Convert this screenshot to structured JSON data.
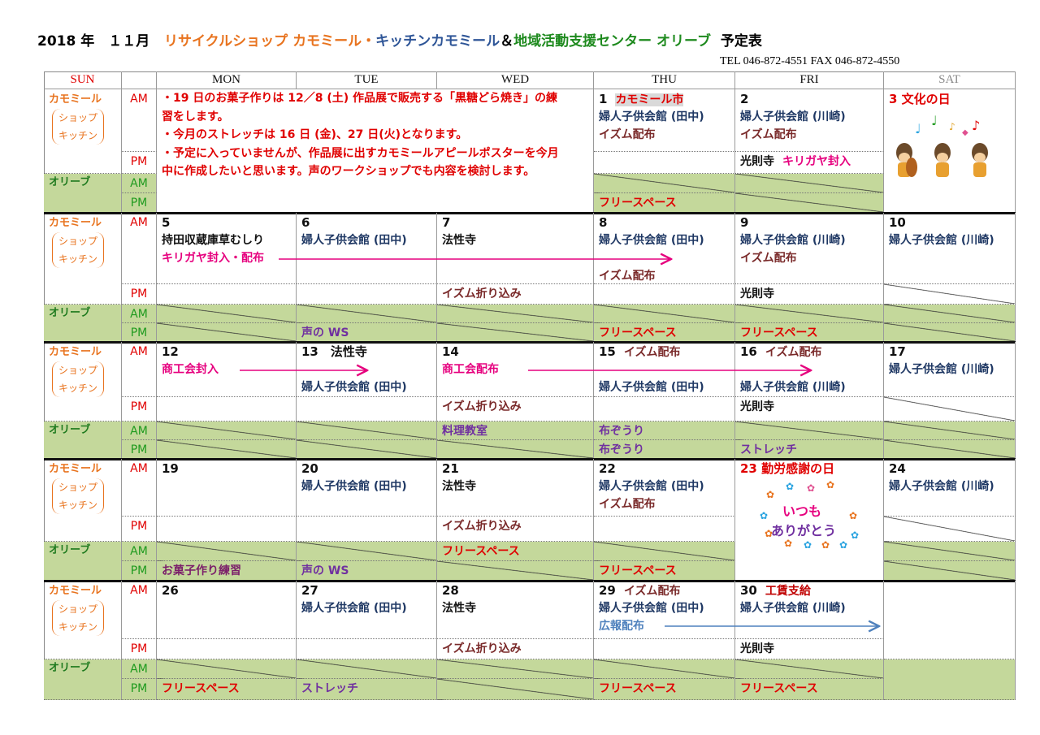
{
  "title": {
    "year_month": "2018 年　１１月",
    "part1": "リサイクルショップ カモミール・",
    "part2": "キッチンカモミール",
    "part3": "＆",
    "part4": "地域活動支援センター オリーブ",
    "part5": "予定表"
  },
  "contact": "TEL  046-872-4551    FAX  046-872-4550",
  "colors": {
    "orange": "#e8731e",
    "blue": "#2e5597",
    "green": "#1e8a1e",
    "red": "#e00000",
    "navy": "#1f3864",
    "brown": "#7a2a2a",
    "pink": "#e6007e",
    "purple": "#7030a0",
    "sky": "#4f81bd",
    "olive_bg": "#c4d89b"
  },
  "headers": [
    "SUN",
    "",
    "MON",
    "TUE",
    "WED",
    "THU",
    "FRI",
    "SAT"
  ],
  "labels": {
    "kamo": "カモミール",
    "shop": "ショップ",
    "kitchen": "キッチン",
    "olive": "オリーブ",
    "am": "AM",
    "pm": "PM"
  },
  "note_lines": [
    "・19 日のお菓子作りは  12／8 (土) 作品展で販売する「黒糖どら焼き」の練",
    "習をします。",
    "・今月のストレッチは 16 日 (金)、27 日(火)となります。",
    "・予定に入っていませんが、作品展に出すカモミールアピールポスターを今月",
    "中に作成したいと思います。声のワークショップでも内容を検討します。"
  ],
  "images": {
    "culture_day": "musicians-illustration",
    "thanks_text_1": "いつも",
    "thanks_text_2": "ありがとう"
  },
  "weeks": [
    {
      "days": [
        null,
        null,
        null,
        {
          "am": [
            [
              {
                "t": "1",
                "c": "#111"
              },
              {
                "t": "カモミール市",
                "c": "#e00000",
                "hl": true
              }
            ],
            [
              {
                "t": "婦人子供会館 (田中)",
                "c": "#1f3864"
              }
            ],
            [
              {
                "t": "イズム配布",
                "c": "#7a2a2a"
              }
            ]
          ],
          "pm": [],
          "oam": [],
          "opm": [
            {
              "t": "フリースペース",
              "c": "#e00000"
            }
          ]
        },
        {
          "am": [
            [
              {
                "t": "2",
                "c": "#111"
              }
            ],
            [
              {
                "t": "婦人子供会館 (川崎)",
                "c": "#1f3864"
              }
            ],
            [
              {
                "t": "イズム配布",
                "c": "#7a2a2a"
              }
            ]
          ],
          "pm": [
            {
              "t": "光則寺",
              "c": "#111"
            },
            {
              "t": "キリガヤ封入",
              "c": "#e6007e"
            }
          ],
          "oam": [],
          "opm": []
        },
        {
          "am": [
            [
              {
                "t": "3  文化の日",
                "c": "#e00000"
              }
            ]
          ]
        }
      ]
    },
    {
      "days": [
        {
          "am": [
            [
              {
                "t": "5",
                "c": "#111"
              }
            ],
            [
              {
                "t": "持田収蔵庫草むしり",
                "c": "#111"
              }
            ],
            [
              {
                "t": "キリガヤ封入・配布",
                "c": "#e6007e"
              }
            ]
          ],
          "pm": [],
          "oam": [],
          "opm": []
        },
        {
          "am": [
            [
              {
                "t": "6",
                "c": "#111"
              }
            ],
            [
              {
                "t": "婦人子供会館 (田中)",
                "c": "#1f3864"
              }
            ]
          ],
          "pm": [],
          "oam": [],
          "opm": [
            {
              "t": "声の WS",
              "c": "#7030a0"
            }
          ]
        },
        {
          "am": [
            [
              {
                "t": "7",
                "c": "#111"
              }
            ],
            [
              {
                "t": "法性寺",
                "c": "#111"
              }
            ]
          ],
          "pm": [
            {
              "t": "イズム折り込み",
              "c": "#7a2a2a"
            }
          ],
          "oam": [],
          "opm": []
        },
        {
          "am": [
            [
              {
                "t": "8",
                "c": "#111"
              }
            ],
            [
              {
                "t": "婦人子供会館 (田中)",
                "c": "#1f3864"
              }
            ],
            [],
            [
              {
                "t": "イズム配布",
                "c": "#7a2a2a"
              }
            ]
          ],
          "pm": [],
          "oam": [],
          "opm": [
            {
              "t": "フリースペース",
              "c": "#e00000"
            }
          ]
        },
        {
          "am": [
            [
              {
                "t": "9",
                "c": "#111"
              }
            ],
            [
              {
                "t": "婦人子供会館 (川崎)",
                "c": "#1f3864"
              }
            ],
            [
              {
                "t": "イズム配布",
                "c": "#7a2a2a"
              }
            ]
          ],
          "pm": [
            {
              "t": "光則寺",
              "c": "#111"
            }
          ],
          "oam": [],
          "opm": [
            {
              "t": "フリースペース",
              "c": "#e00000"
            }
          ]
        },
        {
          "am": [
            [
              {
                "t": "10",
                "c": "#111"
              }
            ],
            [
              {
                "t": "婦人子供会館 (川崎)",
                "c": "#1f3864"
              }
            ]
          ],
          "pm": [],
          "oam": [],
          "opm": []
        }
      ]
    },
    {
      "days": [
        {
          "am": [
            [
              {
                "t": "12",
                "c": "#111"
              }
            ],
            [
              {
                "t": "商工会封入",
                "c": "#e6007e"
              }
            ]
          ],
          "pm": [],
          "oam": [],
          "opm": []
        },
        {
          "am": [
            [
              {
                "t": "13　法性寺",
                "c": "#111"
              }
            ],
            [],
            [
              {
                "t": "婦人子供会館 (田中)",
                "c": "#1f3864"
              }
            ]
          ],
          "pm": [],
          "oam": [],
          "opm": []
        },
        {
          "am": [
            [
              {
                "t": "14",
                "c": "#111"
              }
            ],
            [
              {
                "t": "商工会配布",
                "c": "#e6007e"
              }
            ]
          ],
          "pm": [
            {
              "t": "イズム折り込み",
              "c": "#7a2a2a"
            }
          ],
          "oam": [
            {
              "t": "料理教室",
              "c": "#7030a0"
            }
          ],
          "opm": []
        },
        {
          "am": [
            [
              {
                "t": "15",
                "c": "#111"
              },
              {
                "t": "イズム配布",
                "c": "#7a2a2a"
              }
            ],
            [],
            [
              {
                "t": "婦人子供会館 (田中)",
                "c": "#1f3864"
              }
            ]
          ],
          "pm": [],
          "oam": [
            {
              "t": "布ぞうり",
              "c": "#7030a0"
            }
          ],
          "opm": [
            {
              "t": "布ぞうり",
              "c": "#7030a0"
            }
          ]
        },
        {
          "am": [
            [
              {
                "t": "16",
                "c": "#111"
              },
              {
                "t": "イズム配布",
                "c": "#7a2a2a"
              }
            ],
            [],
            [
              {
                "t": "婦人子供会館 (川崎)",
                "c": "#1f3864"
              }
            ]
          ],
          "pm": [
            {
              "t": "光則寺",
              "c": "#111"
            }
          ],
          "oam": [],
          "opm": [
            {
              "t": "ストレッチ",
              "c": "#7030a0"
            }
          ]
        },
        {
          "am": [
            [
              {
                "t": "17",
                "c": "#111"
              }
            ],
            [
              {
                "t": "婦人子供会館 (川崎)",
                "c": "#1f3864"
              }
            ]
          ],
          "pm": [],
          "oam": [],
          "opm": []
        }
      ]
    },
    {
      "days": [
        {
          "am": [
            [
              {
                "t": "19",
                "c": "#111"
              }
            ]
          ],
          "pm": [],
          "oam": [],
          "opm": [
            {
              "t": "お菓子作り練習",
              "c": "#7b1f6a"
            }
          ]
        },
        {
          "am": [
            [
              {
                "t": "20",
                "c": "#111"
              }
            ],
            [
              {
                "t": "婦人子供会館 (田中)",
                "c": "#1f3864"
              }
            ]
          ],
          "pm": [],
          "oam": [],
          "opm": [
            {
              "t": "声の WS",
              "c": "#7030a0"
            }
          ]
        },
        {
          "am": [
            [
              {
                "t": "21",
                "c": "#111"
              }
            ],
            [
              {
                "t": "法性寺",
                "c": "#111"
              }
            ]
          ],
          "pm": [
            {
              "t": "イズム折り込み",
              "c": "#7a2a2a"
            }
          ],
          "oam": [
            {
              "t": "フリースペース",
              "c": "#e00000"
            }
          ],
          "opm": []
        },
        {
          "am": [
            [
              {
                "t": "22",
                "c": "#111"
              }
            ],
            [
              {
                "t": "婦人子供会館 (田中)",
                "c": "#1f3864"
              }
            ],
            [
              {
                "t": "イズム配布",
                "c": "#7a2a2a"
              }
            ]
          ],
          "pm": [],
          "oam": [],
          "opm": [
            {
              "t": "フリースペース",
              "c": "#e00000"
            }
          ]
        },
        {
          "am": [
            [
              {
                "t": "23  勤労感謝の日",
                "c": "#e00000"
              }
            ]
          ]
        },
        {
          "am": [
            [
              {
                "t": "24",
                "c": "#111"
              }
            ],
            [
              {
                "t": "婦人子供会館 (川崎)",
                "c": "#1f3864"
              }
            ]
          ],
          "pm": [],
          "oam": [],
          "opm": []
        }
      ]
    },
    {
      "days": [
        {
          "am": [
            [
              {
                "t": "26",
                "c": "#111"
              }
            ]
          ],
          "pm": [],
          "oam": [],
          "opm": [
            {
              "t": "フリースペース",
              "c": "#e00000"
            }
          ]
        },
        {
          "am": [
            [
              {
                "t": "27",
                "c": "#111"
              }
            ],
            [
              {
                "t": "婦人子供会館 (田中)",
                "c": "#1f3864"
              }
            ]
          ],
          "pm": [],
          "oam": [],
          "opm": [
            {
              "t": "ストレッチ",
              "c": "#7030a0"
            }
          ]
        },
        {
          "am": [
            [
              {
                "t": "28",
                "c": "#111"
              }
            ],
            [
              {
                "t": "法性寺",
                "c": "#111"
              }
            ]
          ],
          "pm": [
            {
              "t": "イズム折り込み",
              "c": "#7a2a2a"
            }
          ],
          "oam": [],
          "opm": []
        },
        {
          "am": [
            [
              {
                "t": "29",
                "c": "#111"
              },
              {
                "t": "イズム配布",
                "c": "#7a2a2a"
              }
            ],
            [
              {
                "t": "婦人子供会館 (田中)",
                "c": "#1f3864"
              }
            ],
            [
              {
                "t": "広報配布",
                "c": "#4f81bd"
              }
            ]
          ],
          "pm": [],
          "oam": [],
          "opm": [
            {
              "t": "フリースペース",
              "c": "#e00000"
            }
          ]
        },
        {
          "am": [
            [
              {
                "t": "30",
                "c": "#111"
              },
              {
                "t": "工賃支給",
                "c": "#c00000"
              }
            ],
            [
              {
                "t": "婦人子供会館 (川崎)",
                "c": "#1f3864"
              }
            ]
          ],
          "pm": [
            {
              "t": "光則寺",
              "c": "#111"
            }
          ],
          "oam": [],
          "opm": [
            {
              "t": "フリースペース",
              "c": "#e00000"
            }
          ]
        },
        {
          "am": [],
          "pm": [],
          "oam": [],
          "opm": []
        }
      ]
    }
  ]
}
